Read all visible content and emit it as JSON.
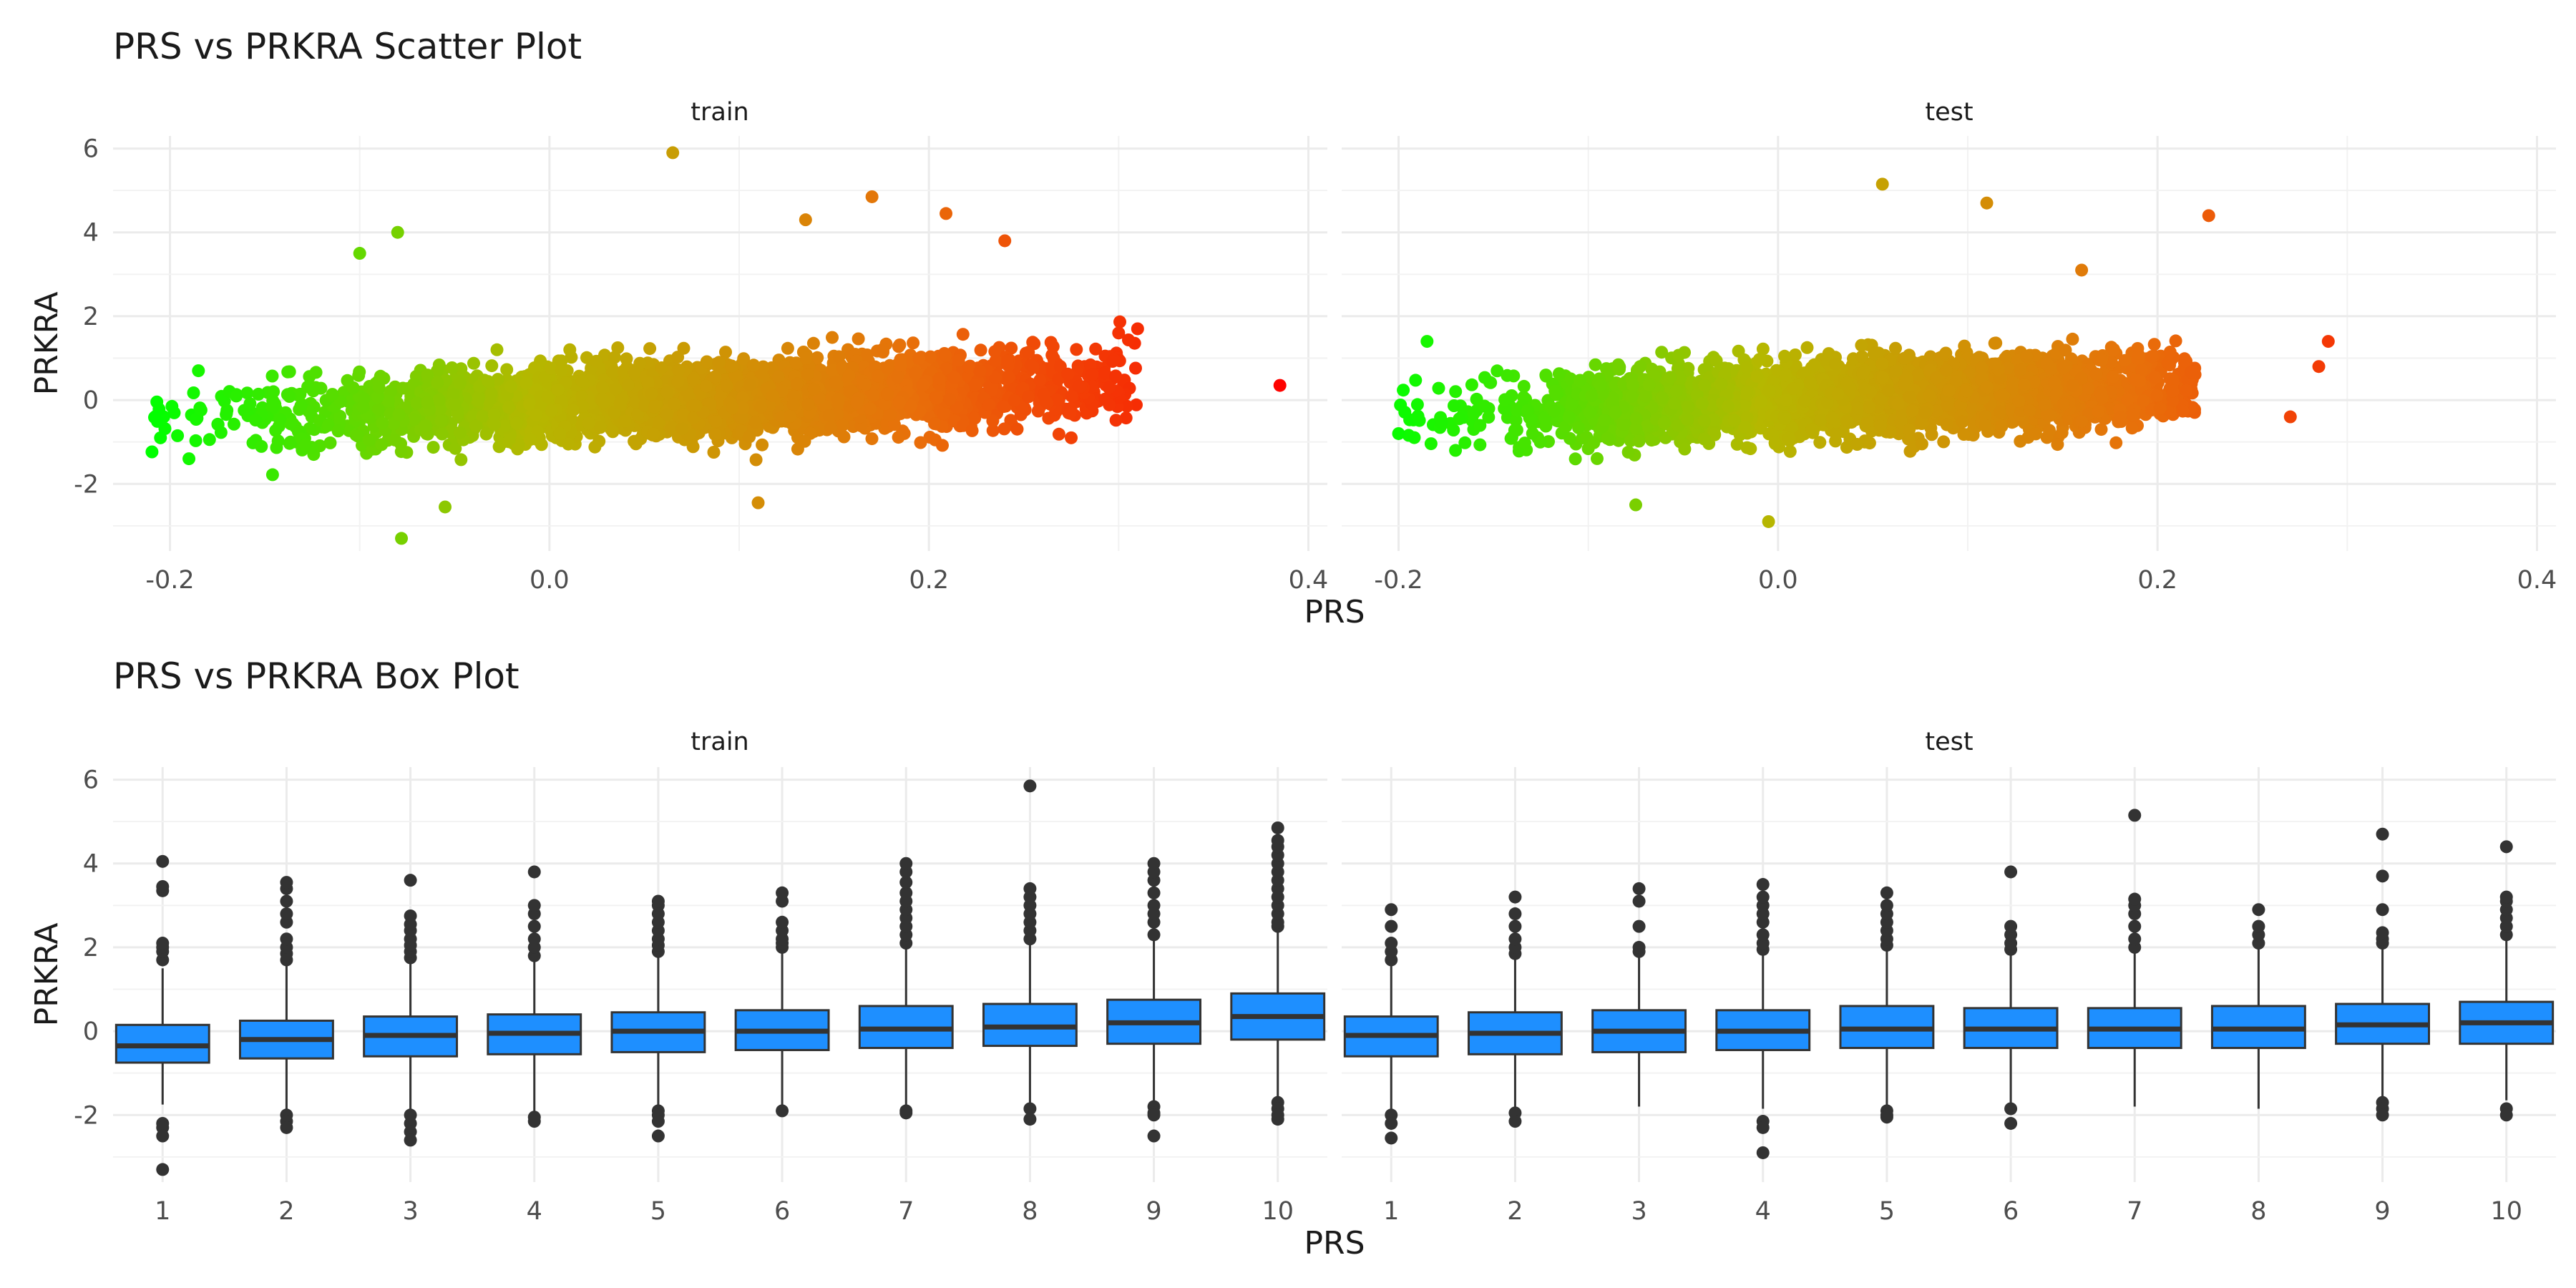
{
  "chart_data": [
    {
      "type": "scatter",
      "title": "PRS vs PRKRA Scatter Plot",
      "xlabel": "PRS",
      "ylabel": "PRKRA",
      "facets": [
        "train",
        "test"
      ],
      "xlim": [
        -0.23,
        0.41
      ],
      "ylim": [
        -3.6,
        6.3
      ],
      "xticks": [
        -0.2,
        0.0,
        0.2,
        0.4
      ],
      "xtick_labels": [
        "-0.2",
        "0.0",
        "0.2",
        "0.4"
      ],
      "yticks": [
        -2,
        0,
        2,
        4,
        6
      ],
      "ytick_labels": [
        "-2",
        "0",
        "2",
        "4",
        "6"
      ],
      "grid": true,
      "color_scale": [
        "#00ff00",
        "#b5b800",
        "#e8700a",
        "#ff0000"
      ],
      "point_cloud": {
        "train": {
          "x_range": [
            -0.21,
            0.39
          ],
          "y_mean_at_xmin": -0.4,
          "y_mean_at_xmax": 0.55,
          "y_sd": 0.8
        },
        "test": {
          "x_range": [
            -0.2,
            0.3
          ],
          "y_mean_at_xmin": -0.3,
          "y_mean_at_xmax": 0.45,
          "y_sd": 0.8
        }
      },
      "notable_points": {
        "train": [
          {
            "x": -0.205,
            "y": -0.9
          },
          {
            "x": -0.19,
            "y": -1.4
          },
          {
            "x": -0.185,
            "y": 0.7
          },
          {
            "x": -0.1,
            "y": 3.5
          },
          {
            "x": -0.08,
            "y": 4.0
          },
          {
            "x": -0.078,
            "y": -3.3
          },
          {
            "x": 0.065,
            "y": 5.9
          },
          {
            "x": 0.17,
            "y": 4.85
          },
          {
            "x": 0.209,
            "y": 4.45
          },
          {
            "x": 0.135,
            "y": 4.3
          },
          {
            "x": 0.24,
            "y": 3.8
          },
          {
            "x": -0.055,
            "y": -2.55
          },
          {
            "x": 0.11,
            "y": -2.45
          },
          {
            "x": 0.3,
            "y": 1.6
          },
          {
            "x": 0.31,
            "y": 1.7
          },
          {
            "x": 0.295,
            "y": 0.3
          },
          {
            "x": 0.275,
            "y": -0.9
          },
          {
            "x": 0.385,
            "y": 0.35
          }
        ],
        "test": [
          {
            "x": -0.2,
            "y": -0.8
          },
          {
            "x": -0.185,
            "y": 1.4
          },
          {
            "x": -0.17,
            "y": -1.2
          },
          {
            "x": 0.055,
            "y": 5.15
          },
          {
            "x": 0.11,
            "y": 4.7
          },
          {
            "x": 0.227,
            "y": 4.4
          },
          {
            "x": -0.075,
            "y": -2.5
          },
          {
            "x": -0.005,
            "y": -2.9
          },
          {
            "x": 0.29,
            "y": 1.4
          },
          {
            "x": 0.285,
            "y": 0.8
          },
          {
            "x": 0.27,
            "y": -0.4
          },
          {
            "x": 0.16,
            "y": 3.1
          }
        ]
      }
    },
    {
      "type": "box",
      "title": "PRS vs PRKRA Box Plot",
      "xlabel": "PRS",
      "ylabel": "PRKRA",
      "facets": [
        "train",
        "test"
      ],
      "categories": [
        "1",
        "2",
        "3",
        "4",
        "5",
        "6",
        "7",
        "8",
        "9",
        "10"
      ],
      "ylim": [
        -3.6,
        6.3
      ],
      "yticks": [
        -2,
        0,
        2,
        4,
        6
      ],
      "ytick_labels": [
        "-2",
        "0",
        "2",
        "4",
        "6"
      ],
      "grid": true,
      "box_color": "#1e8fff",
      "series": {
        "train": [
          {
            "q1": -0.75,
            "median": -0.35,
            "q3": 0.15,
            "whisker_low": -1.75,
            "whisker_high": 1.5,
            "outliers": [
              1.7,
              1.9,
              2.0,
              2.1,
              3.35,
              3.45,
              4.05,
              -2.2,
              -2.3,
              -2.5,
              -3.3
            ]
          },
          {
            "q1": -0.65,
            "median": -0.2,
            "q3": 0.25,
            "whisker_low": -1.95,
            "whisker_high": 1.6,
            "outliers": [
              1.7,
              1.85,
              2.0,
              2.2,
              2.6,
              2.8,
              3.1,
              3.4,
              3.55,
              -2.0,
              -2.15,
              -2.3
            ]
          },
          {
            "q1": -0.6,
            "median": -0.1,
            "q3": 0.35,
            "whisker_low": -1.85,
            "whisker_high": 1.65,
            "outliers": [
              1.75,
              1.9,
              2.05,
              2.2,
              2.4,
              2.55,
              2.75,
              3.6,
              -2.0,
              -2.2,
              -2.4,
              -2.6
            ]
          },
          {
            "q1": -0.55,
            "median": -0.05,
            "q3": 0.4,
            "whisker_low": -1.95,
            "whisker_high": 1.7,
            "outliers": [
              1.8,
              2.0,
              2.2,
              2.5,
              2.8,
              3.0,
              3.8,
              -2.05,
              -2.15
            ]
          },
          {
            "q1": -0.5,
            "median": 0.0,
            "q3": 0.45,
            "whisker_low": -1.75,
            "whisker_high": 1.8,
            "outliers": [
              1.9,
              2.05,
              2.2,
              2.4,
              2.6,
              2.8,
              3.0,
              3.1,
              -1.9,
              -2.0,
              -2.15,
              -2.5
            ]
          },
          {
            "q1": -0.45,
            "median": 0.0,
            "q3": 0.5,
            "whisker_low": -1.85,
            "whisker_high": 1.9,
            "outliers": [
              2.0,
              2.1,
              2.2,
              2.4,
              2.6,
              3.1,
              3.3,
              -1.9
            ]
          },
          {
            "q1": -0.4,
            "median": 0.05,
            "q3": 0.6,
            "whisker_low": -1.85,
            "whisker_high": 2.0,
            "outliers": [
              2.1,
              2.3,
              2.5,
              2.7,
              2.9,
              3.1,
              3.3,
              3.55,
              3.8,
              4.0,
              -1.9,
              -1.95
            ]
          },
          {
            "q1": -0.35,
            "median": 0.1,
            "q3": 0.65,
            "whisker_low": -1.75,
            "whisker_high": 2.1,
            "outliers": [
              2.2,
              2.4,
              2.6,
              2.8,
              3.0,
              3.2,
              3.4,
              5.85,
              -1.85,
              -2.1
            ]
          },
          {
            "q1": -0.3,
            "median": 0.2,
            "q3": 0.75,
            "whisker_low": -1.65,
            "whisker_high": 2.2,
            "outliers": [
              2.3,
              2.6,
              2.8,
              3.0,
              3.3,
              3.6,
              3.8,
              4.0,
              -1.8,
              -1.95,
              -2.0,
              -2.5
            ]
          },
          {
            "q1": -0.2,
            "median": 0.35,
            "q3": 0.9,
            "whisker_low": -1.6,
            "whisker_high": 2.4,
            "outliers": [
              2.5,
              2.6,
              2.8,
              3.0,
              3.2,
              3.4,
              3.6,
              3.8,
              4.0,
              4.2,
              4.4,
              4.55,
              4.85,
              -1.7,
              -1.85,
              -2.0,
              -2.1
            ]
          }
        ],
        "test": [
          {
            "q1": -0.6,
            "median": -0.1,
            "q3": 0.35,
            "whisker_low": -1.9,
            "whisker_high": 1.6,
            "outliers": [
              1.7,
              1.9,
              2.1,
              2.5,
              2.9,
              -2.0,
              -2.2,
              -2.55
            ]
          },
          {
            "q1": -0.55,
            "median": -0.05,
            "q3": 0.45,
            "whisker_low": -1.85,
            "whisker_high": 1.75,
            "outliers": [
              1.85,
              2.0,
              2.2,
              2.5,
              2.8,
              3.2,
              -1.95,
              -2.15
            ]
          },
          {
            "q1": -0.5,
            "median": 0.0,
            "q3": 0.5,
            "whisker_low": -1.8,
            "whisker_high": 1.8,
            "outliers": [
              1.9,
              2.0,
              2.5,
              3.1,
              3.4
            ]
          },
          {
            "q1": -0.45,
            "median": 0.0,
            "q3": 0.5,
            "whisker_low": -1.85,
            "whisker_high": 1.85,
            "outliers": [
              1.95,
              2.1,
              2.3,
              2.6,
              2.8,
              3.0,
              3.2,
              3.5,
              -2.15,
              -2.3,
              -2.9
            ]
          },
          {
            "q1": -0.4,
            "median": 0.05,
            "q3": 0.6,
            "whisker_low": -1.75,
            "whisker_high": 1.95,
            "outliers": [
              2.05,
              2.2,
              2.4,
              2.6,
              2.8,
              3.0,
              3.3,
              -1.9,
              -2.0,
              -2.05
            ]
          },
          {
            "q1": -0.4,
            "median": 0.05,
            "q3": 0.55,
            "whisker_low": -1.75,
            "whisker_high": 1.85,
            "outliers": [
              1.95,
              2.1,
              2.3,
              2.5,
              3.8,
              -1.85,
              -2.2
            ]
          },
          {
            "q1": -0.4,
            "median": 0.05,
            "q3": 0.55,
            "whisker_low": -1.8,
            "whisker_high": 1.9,
            "outliers": [
              2.0,
              2.2,
              2.5,
              2.8,
              3.0,
              3.15,
              5.15
            ]
          },
          {
            "q1": -0.4,
            "median": 0.05,
            "q3": 0.6,
            "whisker_low": -1.85,
            "whisker_high": 2.0,
            "outliers": [
              2.1,
              2.3,
              2.5,
              2.9
            ]
          },
          {
            "q1": -0.3,
            "median": 0.15,
            "q3": 0.65,
            "whisker_low": -1.6,
            "whisker_high": 2.0,
            "outliers": [
              2.1,
              2.2,
              2.35,
              2.9,
              3.7,
              4.7,
              -1.7,
              -1.85,
              -2.0
            ]
          },
          {
            "q1": -0.3,
            "median": 0.2,
            "q3": 0.7,
            "whisker_low": -1.65,
            "whisker_high": 2.2,
            "outliers": [
              2.3,
              2.5,
              2.7,
              2.9,
              3.1,
              3.2,
              4.4,
              -1.85,
              -2.0
            ]
          }
        ]
      }
    }
  ]
}
